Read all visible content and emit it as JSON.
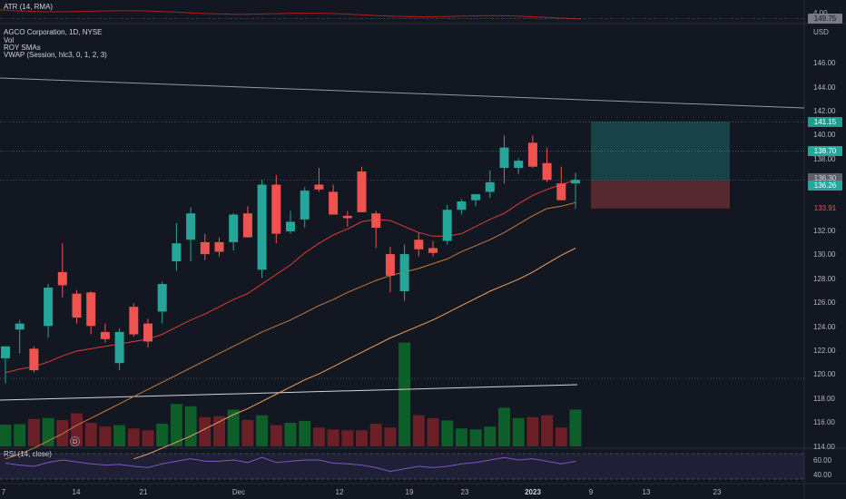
{
  "atr_panel": {
    "label": "ATR (14, RMA)",
    "value_tick": "4.00"
  },
  "main_panel": {
    "title": "AGCO Corporation, 1D, NYSE",
    "indicators": [
      "Vol",
      "ROY SMAs",
      "VWAP (Session, hlc3, 0, 1, 2, 3)"
    ],
    "currency": "USD"
  },
  "rsi_panel": {
    "label": "RSI (14, close)",
    "ticks": [
      "60.00",
      "40.00"
    ]
  },
  "price_tags": [
    {
      "text": "149.75",
      "bg": "#787b86",
      "fg": "#131722",
      "price": 149.75
    },
    {
      "text": "141.15",
      "bg": "#1e9e8c",
      "fg": "#ffffff",
      "price": 141.15
    },
    {
      "text": "138.70",
      "bg": "#26a69a",
      "fg": "#ffffff",
      "price": 138.7
    },
    {
      "text": "136.30",
      "bg": "#5d606b",
      "fg": "#d1d4dc",
      "price": 136.3
    },
    {
      "text": "136.26",
      "bg": "#26a69a",
      "fg": "#ffffff",
      "price": 136.26
    },
    {
      "text": "133.91",
      "bg": "#131722",
      "fg": "#ef5350",
      "price": 133.91
    }
  ],
  "y_ticks": [
    "146.00",
    "144.00",
    "142.00",
    "140.00",
    "138.00",
    "136.00",
    "132.00",
    "130.00",
    "128.00",
    "126.00",
    "124.00",
    "122.00",
    "120.00",
    "118.00",
    "116.00",
    "114.00"
  ],
  "x_ticks": [
    {
      "label": "7",
      "bold": false
    },
    {
      "label": "14",
      "bold": false
    },
    {
      "label": "21",
      "bold": false
    },
    {
      "label": "Dec",
      "bold": false
    },
    {
      "label": "12",
      "bold": false
    },
    {
      "label": "19",
      "bold": false
    },
    {
      "label": "23",
      "bold": false
    },
    {
      "label": "2023",
      "bold": true
    },
    {
      "label": "9",
      "bold": false
    },
    {
      "label": "13",
      "bold": false
    },
    {
      "label": "23",
      "bold": false
    }
  ],
  "dividend_marker": "D",
  "colors": {
    "up": "#26a69a",
    "down": "#ef5350",
    "vol_up": "#0e5e2a",
    "vol_down": "#6b1f27",
    "bg": "#131722",
    "grid": "#2a2e39",
    "sma_short": "#e53935",
    "sma_long": "#f5a05a",
    "vwap": "#d1d4dc",
    "rsi": "#7e57c2"
  },
  "chart_data": {
    "type": "candlestick",
    "title": "AGCO Corporation, 1D, NYSE",
    "ylim": [
      113,
      148
    ],
    "candles": [
      {
        "o": 121.4,
        "h": 122.3,
        "l": 119.3,
        "c": 122.4
      },
      {
        "o": 123.8,
        "h": 124.6,
        "l": 121.8,
        "c": 124.3
      },
      {
        "o": 122.2,
        "h": 122.4,
        "l": 120.2,
        "c": 120.4
      },
      {
        "o": 124.1,
        "h": 127.6,
        "l": 123.1,
        "c": 127.3
      },
      {
        "o": 128.6,
        "h": 131.0,
        "l": 126.5,
        "c": 127.5
      },
      {
        "o": 126.8,
        "h": 127.1,
        "l": 124.3,
        "c": 124.8
      },
      {
        "o": 126.9,
        "h": 127.0,
        "l": 123.4,
        "c": 124.1
      },
      {
        "o": 123.6,
        "h": 124.3,
        "l": 122.7,
        "c": 123.0
      },
      {
        "o": 121.0,
        "h": 123.9,
        "l": 120.4,
        "c": 123.6
      },
      {
        "o": 125.7,
        "h": 126.0,
        "l": 123.2,
        "c": 123.4
      },
      {
        "o": 124.3,
        "h": 124.7,
        "l": 122.3,
        "c": 122.8
      },
      {
        "o": 125.3,
        "h": 127.8,
        "l": 124.3,
        "c": 127.6
      },
      {
        "o": 129.5,
        "h": 132.7,
        "l": 128.7,
        "c": 131.0
      },
      {
        "o": 131.3,
        "h": 134.0,
        "l": 129.5,
        "c": 133.5
      },
      {
        "o": 131.1,
        "h": 131.8,
        "l": 129.6,
        "c": 130.1
      },
      {
        "o": 131.1,
        "h": 131.5,
        "l": 129.9,
        "c": 130.3
      },
      {
        "o": 131.1,
        "h": 133.5,
        "l": 130.4,
        "c": 133.4
      },
      {
        "o": 133.5,
        "h": 134.1,
        "l": 131.5,
        "c": 131.5
      },
      {
        "o": 128.8,
        "h": 136.3,
        "l": 128.1,
        "c": 135.9
      },
      {
        "o": 135.9,
        "h": 136.7,
        "l": 131.0,
        "c": 131.8
      },
      {
        "o": 132.0,
        "h": 133.7,
        "l": 131.8,
        "c": 132.8
      },
      {
        "o": 133.0,
        "h": 135.7,
        "l": 132.3,
        "c": 135.4
      },
      {
        "o": 135.9,
        "h": 137.3,
        "l": 135.3,
        "c": 135.5
      },
      {
        "o": 135.3,
        "h": 135.9,
        "l": 133.5,
        "c": 133.4
      },
      {
        "o": 133.3,
        "h": 133.7,
        "l": 132.4,
        "c": 133.1
      },
      {
        "o": 137.0,
        "h": 137.4,
        "l": 133.6,
        "c": 133.6
      },
      {
        "o": 133.5,
        "h": 133.7,
        "l": 130.6,
        "c": 132.3
      },
      {
        "o": 130.1,
        "h": 130.7,
        "l": 126.9,
        "c": 128.3
      },
      {
        "o": 127.0,
        "h": 130.9,
        "l": 126.2,
        "c": 130.1
      },
      {
        "o": 131.3,
        "h": 131.9,
        "l": 129.9,
        "c": 130.5
      },
      {
        "o": 130.6,
        "h": 131.2,
        "l": 129.9,
        "c": 130.2
      },
      {
        "o": 131.2,
        "h": 134.2,
        "l": 130.9,
        "c": 133.8
      },
      {
        "o": 133.8,
        "h": 134.7,
        "l": 133.4,
        "c": 134.5
      },
      {
        "o": 134.6,
        "h": 135.1,
        "l": 134.1,
        "c": 135.1
      },
      {
        "o": 135.3,
        "h": 137.1,
        "l": 134.8,
        "c": 136.1
      },
      {
        "o": 137.3,
        "h": 140.0,
        "l": 136.0,
        "c": 139.0
      },
      {
        "o": 137.3,
        "h": 138.1,
        "l": 136.8,
        "c": 137.9
      },
      {
        "o": 139.4,
        "h": 140.0,
        "l": 137.3,
        "c": 137.4
      },
      {
        "o": 137.7,
        "h": 139.0,
        "l": 136.1,
        "c": 136.3
      },
      {
        "o": 136.0,
        "h": 137.4,
        "l": 134.6,
        "c": 134.6
      },
      {
        "o": 136.0,
        "h": 136.9,
        "l": 133.9,
        "c": 136.3
      }
    ],
    "sma_short": [
      120.2,
      120.5,
      120.7,
      121.1,
      121.6,
      122.0,
      122.2,
      122.4,
      122.6,
      122.8,
      123.0,
      123.4,
      124.0,
      124.6,
      125.1,
      125.7,
      126.3,
      126.8,
      127.6,
      128.4,
      129.2,
      130.2,
      131.0,
      131.7,
      132.2,
      132.8,
      133.0,
      132.9,
      132.4,
      131.9,
      131.6,
      131.6,
      131.8,
      132.4,
      133.0,
      133.5,
      134.3,
      135.0,
      135.5,
      135.9,
      136.3
    ],
    "sma_long": [
      113.0,
      113.4,
      113.9,
      114.5,
      115.1,
      115.8,
      116.4,
      117.0,
      117.6,
      118.2,
      118.8,
      119.4,
      120.0,
      120.6,
      121.2,
      121.8,
      122.4,
      123.0,
      123.6,
      124.1,
      124.6,
      125.2,
      125.8,
      126.3,
      126.9,
      127.4,
      127.9,
      128.3,
      128.6,
      128.9,
      129.3,
      129.7,
      130.3,
      130.8,
      131.3,
      131.9,
      132.6,
      133.3,
      133.9,
      134.1,
      134.4
    ],
    "sma_longest": [
      null,
      null,
      null,
      null,
      null,
      null,
      null,
      null,
      null,
      113.0,
      113.4,
      113.9,
      114.4,
      114.9,
      115.5,
      116.1,
      116.7,
      117.2,
      117.8,
      118.4,
      119.0,
      119.6,
      120.1,
      120.7,
      121.3,
      121.9,
      122.5,
      123.1,
      123.6,
      124.1,
      124.6,
      125.2,
      125.8,
      126.4,
      127.0,
      127.5,
      128.0,
      128.6,
      129.3,
      130.0,
      130.6
    ],
    "vwap_line": {
      "start": 118.1,
      "end": 118.7
    },
    "volume": [
      46,
      47,
      58,
      60,
      56,
      70,
      50,
      42,
      45,
      38,
      34,
      48,
      90,
      85,
      62,
      64,
      78,
      56,
      66,
      45,
      50,
      54,
      40,
      36,
      34,
      34,
      48,
      40,
      220,
      66,
      60,
      55,
      38,
      36,
      42,
      82,
      60,
      62,
      66,
      40,
      78
    ],
    "trendline": {
      "start_price": 144.8,
      "end_price": 142.3
    },
    "position": {
      "entry": 136.26,
      "target": 141.15,
      "stop": 133.91
    },
    "rsi": [
      55,
      52,
      50,
      56,
      60,
      57,
      54,
      52,
      53,
      50,
      48,
      54,
      58,
      62,
      58,
      58,
      60,
      56,
      64,
      56,
      58,
      60,
      60,
      55,
      54,
      52,
      48,
      42,
      46,
      50,
      48,
      50,
      54,
      56,
      60,
      64,
      60,
      62,
      58,
      54,
      58
    ]
  }
}
